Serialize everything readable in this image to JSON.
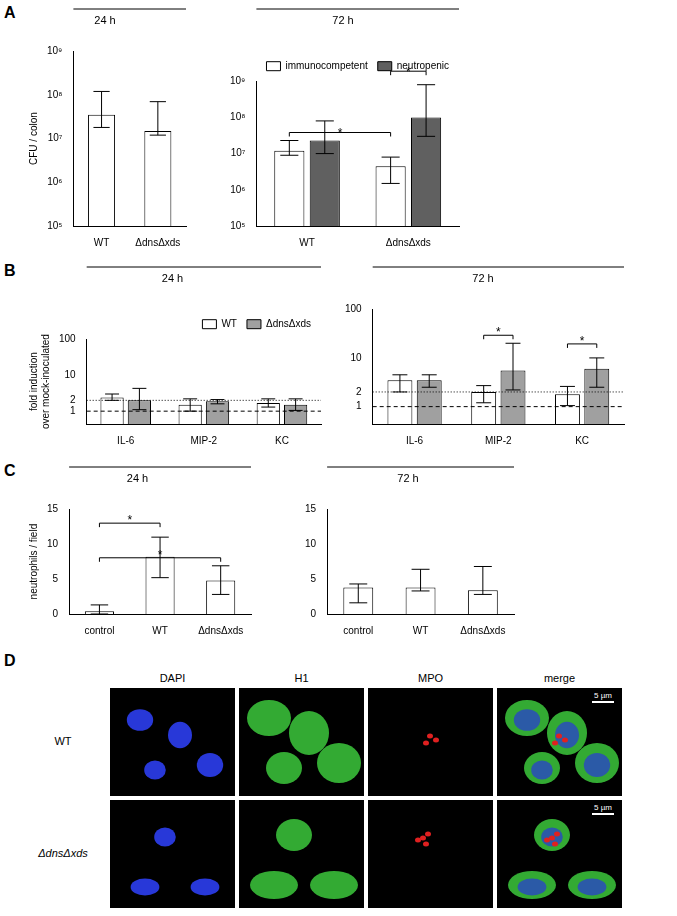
{
  "chart_data": [
    {
      "panel_label": "A",
      "type": "bar",
      "log": "y",
      "title": "24 h",
      "y_label": [
        "CFU / colon"
      ],
      "categories": [
        "WT",
        "ΔdnsΔxds"
      ],
      "series": [
        {
          "color": "#ffffff",
          "values": [
            35000000,
            15000000
          ],
          "error_low": [
            18000000,
            12000000
          ],
          "error_high": [
            120000000,
            70000000
          ]
        }
      ],
      "ylim": [
        100000,
        1000000000
      ],
      "yticks": [
        {
          "value": 100000,
          "label": "10⁵"
        },
        {
          "value": 1000000,
          "label": "10⁶"
        },
        {
          "value": 10000000,
          "label": "10⁷"
        },
        {
          "value": 100000000,
          "label": "10⁸"
        },
        {
          "value": 1000000000,
          "label": "10⁹"
        }
      ],
      "grid": false
    },
    {
      "type": "bar",
      "log": "y",
      "title": "72 h",
      "legend": "top",
      "categories": [
        "WT",
        "ΔdnsΔxds"
      ],
      "series": [
        {
          "name": "immunocompetent",
          "color": "#ffffff",
          "values": [
            12000000,
            4500000
          ],
          "error_low": [
            9000000,
            1500000
          ],
          "error_high": [
            23000000,
            8000000
          ]
        },
        {
          "name": "neutropenic",
          "color": "#606060",
          "values": [
            23000000,
            100000000
          ],
          "error_low": [
            10000000,
            30000000
          ],
          "error_high": [
            80000000,
            800000000
          ]
        }
      ],
      "significance": [
        {
          "from": [
            0,
            0
          ],
          "to": [
            1,
            0
          ],
          "label": "*"
        },
        {
          "from": [
            1,
            0
          ],
          "to": [
            1,
            1
          ],
          "label": "*"
        }
      ],
      "ylim": [
        100000,
        1000000000
      ],
      "yticks": [
        {
          "value": 100000,
          "label": "10⁵"
        },
        {
          "value": 1000000,
          "label": "10⁶"
        },
        {
          "value": 10000000,
          "label": "10⁷"
        },
        {
          "value": 100000000,
          "label": "10⁸"
        },
        {
          "value": 1000000000,
          "label": "10⁹"
        }
      ],
      "grid": false
    },
    {
      "panel_label": "B",
      "type": "bar",
      "log": "y",
      "title": "24 h",
      "legend": "top",
      "y_label": [
        "fold induction",
        "over mock-inoculated"
      ],
      "categories": [
        "IL-6",
        "MIP-2",
        "KC"
      ],
      "series": [
        {
          "name": "WT",
          "color": "#ffffff",
          "values": [
            2.4,
            1.5,
            1.7
          ],
          "error_low": [
            2.0,
            1.0,
            1.3
          ],
          "error_high": [
            3.0,
            2.2,
            2.2
          ]
        },
        {
          "name": "ΔdnsΔxds",
          "color": "#a0a0a0",
          "values": [
            2.0,
            1.9,
            1.5
          ],
          "error_low": [
            1.1,
            1.6,
            1.05
          ],
          "error_high": [
            4.3,
            2.1,
            2.2
          ]
        }
      ],
      "reference_lines": [
        {
          "value": 1,
          "line_style": "dashed"
        },
        {
          "value": 2,
          "line_style": "dotted"
        }
      ],
      "ylim": [
        0.44,
        100
      ],
      "yticks": [
        1,
        2,
        10,
        100
      ],
      "grid": false
    },
    {
      "type": "bar",
      "log": "y",
      "title": "72 h",
      "categories": [
        "IL-6",
        "MIP-2",
        "KC"
      ],
      "series": [
        {
          "name": "WT",
          "color": "#ffffff",
          "values": [
            3.5,
            2.0,
            1.8
          ],
          "error_low": [
            2.0,
            1.2,
            1.05
          ],
          "error_high": [
            4.5,
            2.7,
            2.6
          ]
        },
        {
          "name": "ΔdnsΔxds",
          "color": "#a0a0a0",
          "values": [
            3.5,
            5.5,
            6.0
          ],
          "error_low": [
            2.5,
            2.2,
            2.5
          ],
          "error_high": [
            4.5,
            20,
            10
          ]
        }
      ],
      "significance": [
        {
          "from": [
            1,
            0
          ],
          "to": [
            1,
            1
          ],
          "label": "*"
        },
        {
          "from": [
            2,
            0
          ],
          "to": [
            2,
            1
          ],
          "label": "*"
        }
      ],
      "reference_lines": [
        {
          "value": 1,
          "line_style": "dashed"
        },
        {
          "value": 2,
          "line_style": "dotted"
        }
      ],
      "ylim": [
        0.44,
        100
      ],
      "yticks": [
        1,
        2,
        10,
        100
      ],
      "grid": false
    },
    {
      "panel_label": "C",
      "type": "bar",
      "title": "24 h",
      "y_label": [
        "neutrophils / field"
      ],
      "categories": [
        "control",
        "WT",
        "ΔdnsΔxds"
      ],
      "series": [
        {
          "color": "#ffffff",
          "values": [
            0.4,
            8.2,
            4.8
          ],
          "error_low": [
            0,
            5.2,
            2.8
          ],
          "error_high": [
            1.3,
            11,
            6.9
          ]
        }
      ],
      "significance": [
        {
          "from": [
            0,
            0
          ],
          "to": [
            2,
            0
          ],
          "label": "*"
        },
        {
          "from": [
            0,
            0
          ],
          "to": [
            1,
            0
          ],
          "label": "*"
        }
      ],
      "ylim": [
        0,
        15
      ],
      "yticks": [
        0,
        5,
        10,
        15
      ],
      "grid": false
    },
    {
      "type": "bar",
      "title": "72 h",
      "categories": [
        "control",
        "WT",
        "ΔdnsΔxds"
      ],
      "series": [
        {
          "color": "#ffffff",
          "values": [
            3.8,
            3.8,
            3.4
          ],
          "error_low": [
            1.6,
            3.3,
            2.8
          ],
          "error_high": [
            4.3,
            6.4,
            6.8
          ]
        }
      ],
      "ylim": [
        0,
        15
      ],
      "yticks": [
        0,
        5,
        10,
        15
      ],
      "grid": false
    }
  ],
  "image_panel": {
    "panel_label": "D",
    "columns": [
      "DAPI",
      "H1",
      "MPO",
      "merge"
    ],
    "rows": [
      "WT",
      "ΔdnsΔxds"
    ],
    "scale_bar": "5 µm"
  }
}
